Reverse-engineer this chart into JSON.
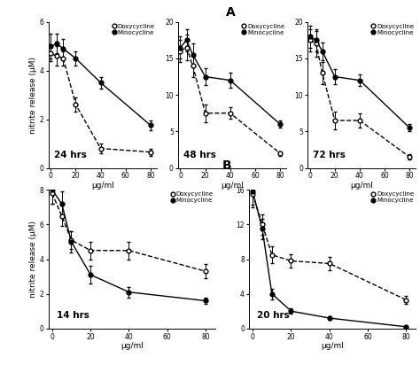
{
  "title_A": "A",
  "title_B": "B",
  "panels": [
    {
      "label": "24 hrs",
      "ylim": [
        0,
        6
      ],
      "yticks": [
        0,
        2,
        4,
        6
      ],
      "ylabel": "nitrite release (μM)",
      "doxy_x": [
        0,
        5,
        10,
        20,
        40,
        80
      ],
      "doxy_y": [
        4.7,
        4.6,
        4.5,
        2.6,
        0.8,
        0.65
      ],
      "doxy_err": [
        0.3,
        0.4,
        0.3,
        0.3,
        0.2,
        0.15
      ],
      "mino_x": [
        0,
        5,
        10,
        20,
        40,
        80
      ],
      "mino_y": [
        5.0,
        5.1,
        4.9,
        4.5,
        3.5,
        1.75
      ],
      "mino_err": [
        0.5,
        0.4,
        0.4,
        0.3,
        0.25,
        0.2
      ],
      "doxy_style": "dashed",
      "mino_style": "solid"
    },
    {
      "label": "48 hrs",
      "ylim": [
        0,
        20
      ],
      "yticks": [
        0,
        5,
        10,
        15,
        20
      ],
      "ylabel": "",
      "doxy_x": [
        0,
        5,
        10,
        20,
        40,
        80
      ],
      "doxy_y": [
        16.0,
        16.5,
        14.0,
        7.5,
        7.5,
        2.0
      ],
      "doxy_err": [
        1.5,
        1.8,
        1.5,
        1.2,
        0.8,
        0.3
      ],
      "mino_x": [
        0,
        5,
        10,
        20,
        40,
        80
      ],
      "mino_y": [
        16.5,
        17.5,
        15.5,
        12.5,
        12.0,
        6.0
      ],
      "mino_err": [
        1.5,
        1.5,
        1.5,
        1.2,
        1.0,
        0.5
      ],
      "doxy_style": "dashed",
      "mino_style": "solid"
    },
    {
      "label": "72 hrs",
      "ylim": [
        0,
        20
      ],
      "yticks": [
        0,
        5,
        10,
        15,
        20
      ],
      "ylabel": "",
      "doxy_x": [
        0,
        5,
        10,
        20,
        40,
        80
      ],
      "doxy_y": [
        17.5,
        17.0,
        13.0,
        6.5,
        6.5,
        1.5
      ],
      "doxy_err": [
        1.5,
        1.8,
        1.5,
        1.2,
        1.0,
        0.4
      ],
      "mino_x": [
        0,
        5,
        10,
        20,
        40,
        80
      ],
      "mino_y": [
        18.0,
        17.5,
        16.0,
        12.5,
        12.0,
        5.5
      ],
      "mino_err": [
        1.5,
        1.5,
        1.2,
        1.0,
        0.8,
        0.5
      ],
      "doxy_style": "dashed",
      "mino_style": "solid"
    }
  ],
  "panels_B": [
    {
      "label": "14 hrs",
      "ylim": [
        0,
        8
      ],
      "yticks": [
        0,
        2,
        4,
        6,
        8
      ],
      "ylabel": "nitrite release (μM)",
      "doxy_x": [
        0,
        5,
        10,
        20,
        40,
        80
      ],
      "doxy_y": [
        7.8,
        6.5,
        5.1,
        4.5,
        4.5,
        3.3
      ],
      "doxy_err": [
        0.6,
        0.6,
        0.5,
        0.5,
        0.5,
        0.4
      ],
      "mino_x": [
        0,
        5,
        10,
        20,
        40,
        80
      ],
      "mino_y": [
        8.0,
        7.2,
        5.0,
        3.1,
        2.1,
        1.6
      ],
      "mino_err": [
        0.8,
        0.7,
        0.6,
        0.5,
        0.3,
        0.2
      ],
      "doxy_style": "dashed",
      "mino_style": "solid"
    },
    {
      "label": "20 hrs",
      "ylim": [
        0,
        16
      ],
      "yticks": [
        0,
        4,
        8,
        12,
        16
      ],
      "ylabel": "",
      "doxy_x": [
        0,
        5,
        10,
        20,
        40,
        80
      ],
      "doxy_y": [
        15.5,
        12.0,
        8.5,
        7.8,
        7.5,
        3.3
      ],
      "doxy_err": [
        1.5,
        1.2,
        1.0,
        0.8,
        0.8,
        0.5
      ],
      "mino_x": [
        0,
        5,
        10,
        20,
        40,
        80
      ],
      "mino_y": [
        15.8,
        11.5,
        4.0,
        2.0,
        1.2,
        0.2
      ],
      "mino_err": [
        1.5,
        1.2,
        0.6,
        0.3,
        0.2,
        0.1
      ],
      "doxy_style": "dashed",
      "mino_style": "solid"
    }
  ],
  "legend_doxy": "Doxycycline",
  "legend_mino": "Minocycline",
  "xlabel": "μg/ml",
  "bg_color": "#ffffff",
  "line_color": "#000000"
}
